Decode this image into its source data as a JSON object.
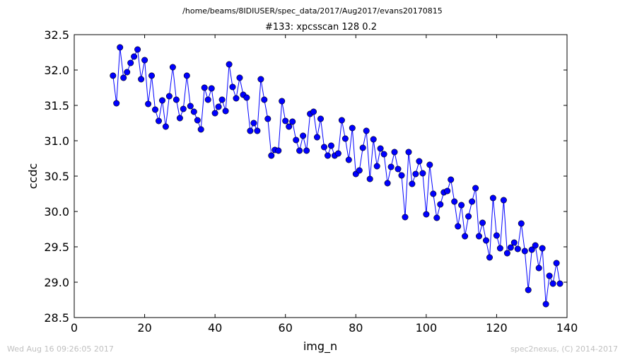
{
  "chart_data": {
    "type": "line",
    "suptitle": "/home/beams/8IDIUSER/spec_data/2017/Aug2017/evans20170815",
    "title": "#133: xpcsscan 128 0.2",
    "xlabel": "img_n",
    "ylabel": "ccdc",
    "xlim": [
      0,
      140
    ],
    "ylim": [
      28.5,
      32.5
    ],
    "xticks": [
      "0",
      "20",
      "40",
      "60",
      "80",
      "100",
      "120",
      "140"
    ],
    "yticks": [
      "28.5",
      "29.0",
      "29.5",
      "30.0",
      "30.5",
      "31.0",
      "31.5",
      "32.0",
      "32.5"
    ],
    "grid": false,
    "legend": "none",
    "color": "#0000ff",
    "marker": "circle",
    "series": [
      {
        "x": [
          11,
          12,
          13,
          14,
          15,
          16,
          17,
          18,
          19,
          20,
          21,
          22,
          23,
          24,
          25,
          26,
          27,
          28,
          29,
          30,
          31,
          32,
          33,
          34,
          35,
          36,
          37,
          38,
          39,
          40,
          41,
          42,
          43,
          44,
          45,
          46,
          47,
          48,
          49,
          50,
          51,
          52,
          53,
          54,
          55,
          56,
          57,
          58,
          59,
          60,
          61,
          62,
          63,
          64,
          65,
          66,
          67,
          68,
          69,
          70,
          71,
          72,
          73,
          74,
          75,
          76,
          77,
          78,
          79,
          80,
          81,
          82,
          83,
          84,
          85,
          86,
          87,
          88,
          89,
          90,
          91,
          92,
          93,
          94,
          95,
          96,
          97,
          98,
          99,
          100,
          101,
          102,
          103,
          104,
          105,
          106,
          107,
          108,
          109,
          110,
          111,
          112,
          113,
          114,
          115,
          116,
          117,
          118,
          119,
          120,
          121,
          122,
          123,
          124,
          125,
          126,
          127,
          128,
          129,
          130,
          131,
          132,
          133,
          134,
          135,
          136,
          137,
          138
        ],
        "y": [
          31.92,
          31.53,
          32.32,
          31.89,
          31.97,
          32.1,
          32.19,
          32.29,
          31.87,
          32.14,
          31.52,
          31.92,
          31.44,
          31.28,
          31.57,
          31.2,
          31.63,
          32.04,
          31.58,
          31.32,
          31.45,
          31.92,
          31.49,
          31.41,
          31.29,
          31.16,
          31.75,
          31.58,
          31.74,
          31.39,
          31.48,
          31.58,
          31.42,
          32.08,
          31.76,
          31.6,
          31.89,
          31.65,
          31.61,
          31.14,
          31.25,
          31.14,
          31.87,
          31.58,
          31.31,
          30.79,
          30.87,
          30.86,
          31.56,
          31.28,
          31.2,
          31.27,
          31.01,
          30.86,
          31.07,
          30.86,
          31.38,
          31.41,
          31.05,
          31.31,
          30.91,
          30.79,
          30.93,
          30.79,
          30.82,
          31.29,
          31.03,
          30.73,
          31.18,
          30.53,
          30.58,
          30.9,
          31.14,
          30.46,
          31.02,
          30.64,
          30.89,
          30.81,
          30.4,
          30.63,
          30.84,
          30.6,
          30.51,
          29.92,
          30.84,
          30.39,
          30.53,
          30.71,
          30.54,
          29.96,
          30.66,
          30.25,
          29.91,
          30.1,
          30.27,
          30.29,
          30.45,
          30.14,
          29.79,
          30.09,
          29.65,
          29.93,
          30.14,
          30.33,
          29.65,
          29.84,
          29.59,
          29.35,
          30.19,
          29.66,
          29.48,
          30.16,
          29.41,
          29.49,
          29.56,
          29.47,
          29.83,
          29.44,
          28.89,
          29.46,
          29.52,
          29.2,
          29.48,
          28.69,
          29.09,
          28.98,
          29.27,
          28.98
        ]
      }
    ]
  },
  "footer": {
    "left": "Wed Aug 16 09:26:05 2017",
    "right": "spec2nexus, (C) 2014-2017"
  }
}
